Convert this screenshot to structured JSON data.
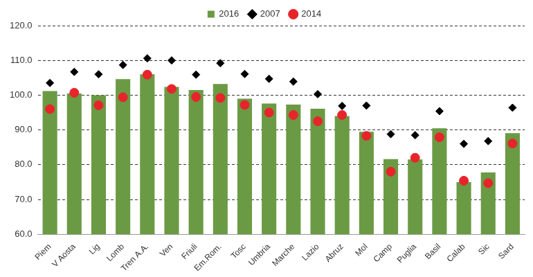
{
  "chart_data": {
    "type": "bar",
    "categories": [
      "Piem",
      "V Aosta",
      "Lig",
      "Lomb",
      "Tren A.A.",
      "Ven",
      "Friuli",
      "Em.Rom.",
      "Tosc",
      "Umbria",
      "Marche",
      "Lazio",
      "Abruz",
      "Mol",
      "Camp",
      "Puglia",
      "Basil",
      "Calab",
      "Sic",
      "Sard"
    ],
    "series": [
      {
        "name": "2016",
        "type": "bar",
        "color": "#6b9a44",
        "values": [
          101.2,
          100.5,
          100.0,
          104.6,
          106.0,
          102.4,
          101.5,
          103.2,
          99.0,
          97.6,
          97.3,
          96.1,
          94.0,
          89.5,
          81.6,
          81.5,
          90.5,
          75.0,
          77.8,
          89.1
        ]
      },
      {
        "name": "2007",
        "type": "scatter",
        "marker": "diamond",
        "color": "#000000",
        "values": [
          103.5,
          106.7,
          106.0,
          108.7,
          110.6,
          110.0,
          105.9,
          109.2,
          106.1,
          104.7,
          103.9,
          100.3,
          96.9,
          97.0,
          88.8,
          88.5,
          95.4,
          86.0,
          86.8,
          96.4
        ]
      },
      {
        "name": "2014",
        "type": "scatter",
        "marker": "circle",
        "color": "#e8242b",
        "values": [
          96.0,
          100.7,
          97.1,
          99.4,
          105.9,
          101.8,
          99.5,
          99.2,
          97.2,
          95.0,
          94.3,
          92.5,
          94.3,
          88.3,
          78.0,
          82.0,
          87.9,
          75.4,
          74.7,
          86.1
        ]
      }
    ],
    "ylim": [
      60,
      120
    ],
    "yticks": [
      {
        "value": 60,
        "label": "60.0"
      },
      {
        "value": 70,
        "label": "70.0"
      },
      {
        "value": 80,
        "label": "80.0"
      },
      {
        "value": 90,
        "label": "90.0"
      },
      {
        "value": 100,
        "label": "100.0"
      },
      {
        "value": 110,
        "label": "110.0"
      },
      {
        "value": 120,
        "label": "120.0"
      }
    ],
    "grid": true,
    "legend": "top"
  }
}
